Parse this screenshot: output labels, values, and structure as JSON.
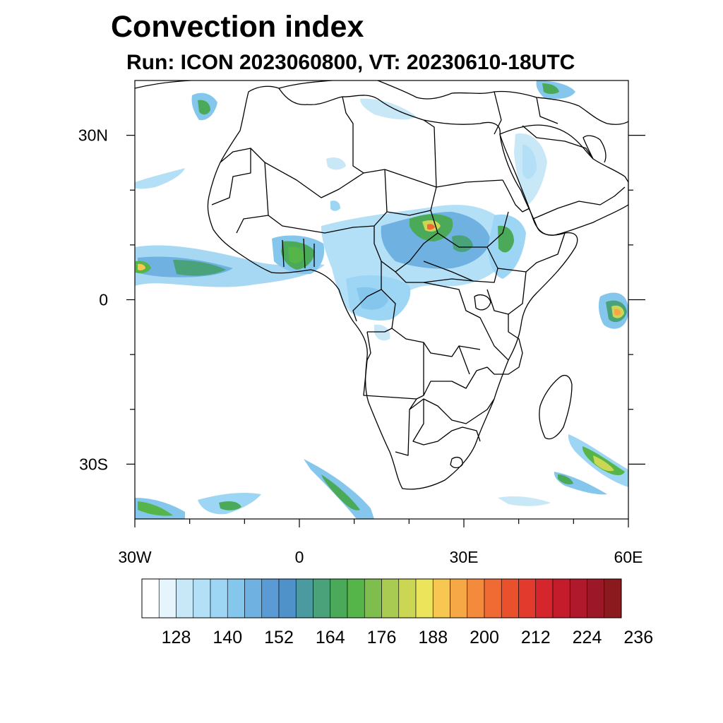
{
  "title": "Convection index",
  "subtitle": "Run: ICON 2023060800,  VT: 20230610-18UTC",
  "map": {
    "lon_range": [
      -30,
      60
    ],
    "lat_range": [
      -40,
      40
    ],
    "lon_ticks": [
      {
        "value": -30,
        "label": "30W"
      },
      {
        "value": 0,
        "label": "0"
      },
      {
        "value": 30,
        "label": "30E"
      },
      {
        "value": 60,
        "label": "60E"
      }
    ],
    "lat_ticks": [
      {
        "value": 30,
        "label": "30N"
      },
      {
        "value": 0,
        "label": "0"
      },
      {
        "value": -30,
        "label": "30S"
      }
    ],
    "minor_lon_ticks": [
      -20,
      -10,
      10,
      20,
      40,
      50
    ],
    "minor_lat_ticks": [
      20,
      10,
      -10,
      -20
    ]
  },
  "colorbar": {
    "colors": [
      "#ffffff",
      "#e6f4fb",
      "#c8e8f7",
      "#b3e0f6",
      "#9dd6f4",
      "#84c6ec",
      "#6fb2e2",
      "#5a9bd5",
      "#4f92c9",
      "#4a9aa0",
      "#49a27a",
      "#4aaa5a",
      "#55b548",
      "#7ebd4e",
      "#a9cb52",
      "#cbd655",
      "#ece45a",
      "#f8c752",
      "#f6a746",
      "#f38a3c",
      "#ef6b33",
      "#e9502c",
      "#e23a2c",
      "#d6262d",
      "#c51c2c",
      "#b0182b",
      "#9c1828",
      "#8b1a1f"
    ],
    "labels": [
      "128",
      "140",
      "152",
      "164",
      "176",
      "188",
      "200",
      "212",
      "224",
      "236"
    ]
  }
}
